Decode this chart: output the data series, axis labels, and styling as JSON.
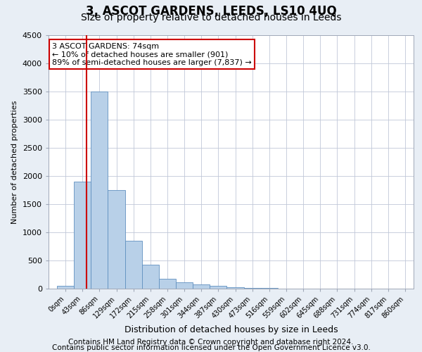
{
  "title": "3, ASCOT GARDENS, LEEDS, LS10 4UQ",
  "subtitle": "Size of property relative to detached houses in Leeds",
  "xlabel": "Distribution of detached houses by size in Leeds",
  "ylabel": "Number of detached properties",
  "bin_labels": [
    "0sqm",
    "43sqm",
    "86sqm",
    "129sqm",
    "172sqm",
    "215sqm",
    "258sqm",
    "301sqm",
    "344sqm",
    "387sqm",
    "430sqm",
    "473sqm",
    "516sqm",
    "559sqm",
    "602sqm",
    "645sqm",
    "688sqm",
    "731sqm",
    "774sqm",
    "817sqm",
    "860sqm"
  ],
  "bin_edges": [
    0,
    43,
    86,
    129,
    172,
    215,
    258,
    301,
    344,
    387,
    430,
    473,
    516,
    559,
    602,
    645,
    688,
    731,
    774,
    817,
    860
  ],
  "bar_heights": [
    50,
    1900,
    3500,
    1750,
    850,
    430,
    175,
    115,
    80,
    55,
    20,
    15,
    10,
    5,
    3,
    2,
    1,
    1,
    0,
    0
  ],
  "bar_color": "#b8d0e8",
  "bar_edge_color": "#6090c0",
  "property_size": 74,
  "property_line_color": "#cc0000",
  "annotation_line1": "3 ASCOT GARDENS: 74sqm",
  "annotation_line2": "← 10% of detached houses are smaller (901)",
  "annotation_line3": "89% of semi-detached houses are larger (7,837) →",
  "annotation_box_color": "#ffffff",
  "annotation_box_edge_color": "#cc0000",
  "ylim": [
    0,
    4500
  ],
  "yticks": [
    0,
    500,
    1000,
    1500,
    2000,
    2500,
    3000,
    3500,
    4000,
    4500
  ],
  "footer_line1": "Contains HM Land Registry data © Crown copyright and database right 2024.",
  "footer_line2": "Contains public sector information licensed under the Open Government Licence v3.0.",
  "bg_color": "#e8eef5",
  "plot_bg_color": "#ffffff",
  "title_fontsize": 12,
  "subtitle_fontsize": 10,
  "footer_fontsize": 7.5
}
